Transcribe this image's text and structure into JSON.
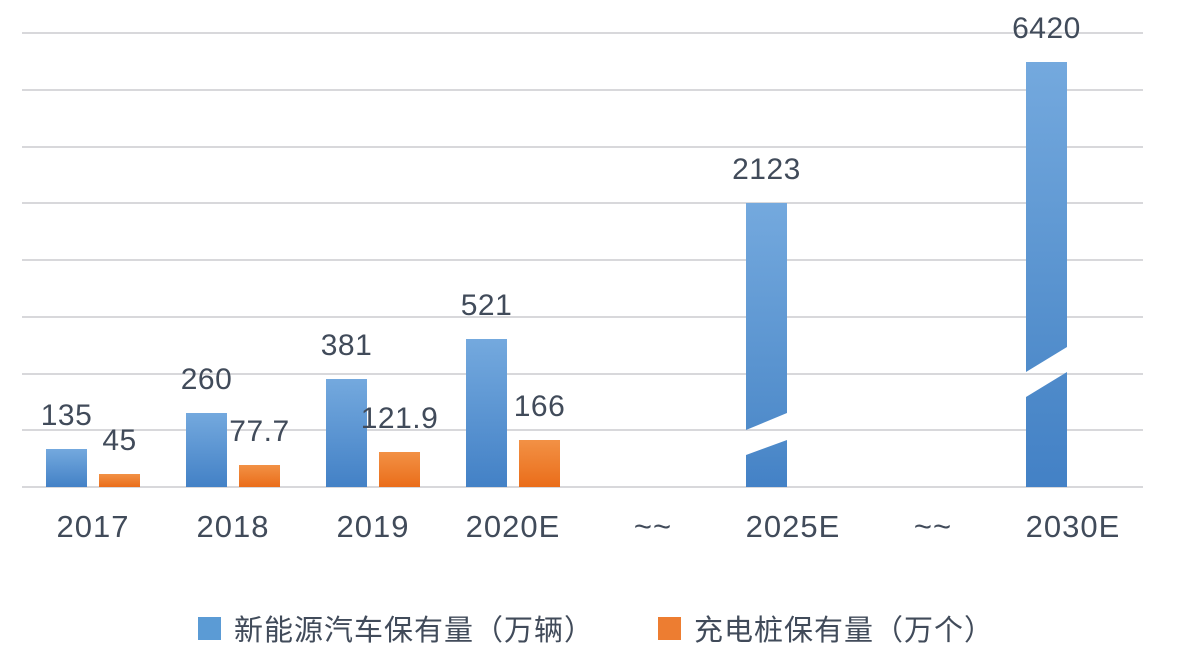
{
  "chart_data": {
    "type": "bar",
    "title": "",
    "categories": [
      "2017",
      "2018",
      "2019",
      "2020E",
      "~~",
      "2025E",
      "~~",
      "2030E"
    ],
    "series": [
      {
        "name": "新能源汽车保有量（万辆）",
        "color": "blue",
        "values": [
          135,
          260,
          381,
          521,
          null,
          2123,
          null,
          6420
        ]
      },
      {
        "name": "充电桩保有量（万个）",
        "color": "orange",
        "values": [
          45,
          77.7,
          121.9,
          166,
          null,
          null,
          null,
          null
        ]
      }
    ],
    "xlabel": "",
    "ylabel": "",
    "ylim": [
      0,
      1600
    ],
    "grid": true,
    "gridline_interval": 200,
    "gridline_count": 9,
    "legend_position": "bottom",
    "axis_break": {
      "broken_categories": [
        "2025E",
        "2030E"
      ],
      "x_axis_marker": "~~",
      "bar_break_style": "diagonal-white-gap"
    }
  },
  "colors": {
    "bar_blue": "#5B9BD5",
    "bar_blue_top": "#74A9DE",
    "bar_blue_mid": "#4F8BCA",
    "bar_blue_bottom": "#4381C6",
    "bar_orange": "#ED7D31",
    "bar_orange_top": "#F29145",
    "bar_orange_bottom": "#EA6D1A",
    "gridline": "#D8D8DB",
    "label_text": "#414B5A",
    "background": "#FFFFFF"
  },
  "legend": {
    "items": [
      {
        "label": "新能源汽车保有量（万辆）",
        "swatch": "blue-square"
      },
      {
        "label": "充电桩保有量（万个）",
        "swatch": "orange-square"
      }
    ]
  }
}
